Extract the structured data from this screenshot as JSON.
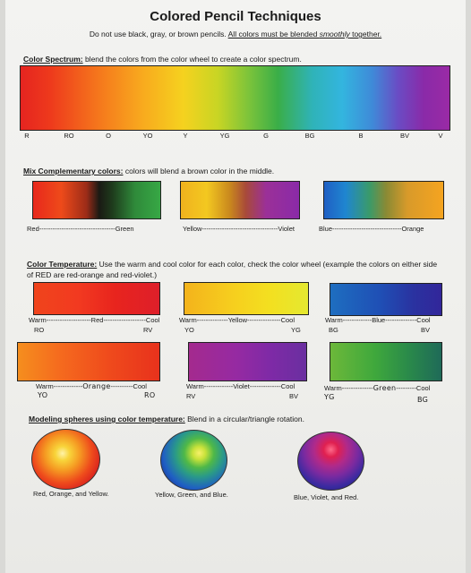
{
  "title": "Colored Pencil Techniques",
  "subtitle": {
    "part1": "Do not use black, gray, or brown pencils.",
    "part2": "All colors must be blended ",
    "part2_em": "smoothly",
    "part2_end": " together."
  },
  "spectrum": {
    "heading": "Color Spectrum:",
    "text": " blend the colors from the color wheel to create a color spectrum.",
    "labels": [
      "R",
      "RO",
      "O",
      "YO",
      "Y",
      "YG",
      "G",
      "BG",
      "B",
      "BV",
      "V"
    ]
  },
  "complementary": {
    "heading": "Mix Complementary colors:",
    "text": " colors will blend a brown color in the middle.",
    "pairs": [
      {
        "left": "Red",
        "dashes": "----------------------------------",
        "right": "Green"
      },
      {
        "left": "Yellow",
        "dashes": "----------------------------------",
        "right": "Violet"
      },
      {
        "left": "Blue",
        "dashes": "-------------------------------",
        "right": "Orange"
      }
    ]
  },
  "temperature": {
    "heading": "Color Temperature:",
    "text": " Use the warm and cool color for each color, check the color wheel (example the colors on either side of RED are red-orange and red-violet.)",
    "warm": "Warm",
    "cool": "Cool",
    "items": [
      {
        "name": "Red",
        "warm_code": "RO",
        "cool_code": "RV"
      },
      {
        "name": "Yellow",
        "warm_code": "YO",
        "cool_code": "YG"
      },
      {
        "name": "Blue",
        "warm_code": "BG",
        "cool_code": "BV"
      },
      {
        "name": "Orange",
        "warm_code": "YO",
        "cool_code": "RO"
      },
      {
        "name": "Violet",
        "warm_code": "RV",
        "cool_code": "BV"
      },
      {
        "name": "Green",
        "warm_code": "YG",
        "cool_code": "BG"
      }
    ]
  },
  "spheres": {
    "heading": "Modeling spheres using color temperature:",
    "text": " Blend in a circular/triangle rotation.",
    "items": [
      {
        "caption": "Red, Orange, and Yellow."
      },
      {
        "caption": "Yellow, Green, and Blue."
      },
      {
        "caption": "Blue, Violet, and Red."
      }
    ]
  },
  "colors": {
    "paper": "#efefec",
    "red": "#e8231e",
    "orange": "#f57a1e",
    "yellow": "#f6d21c",
    "green": "#32a83a",
    "blue": "#1f4fb5",
    "cyan": "#2fb3d9",
    "violet": "#8a2aa8"
  }
}
